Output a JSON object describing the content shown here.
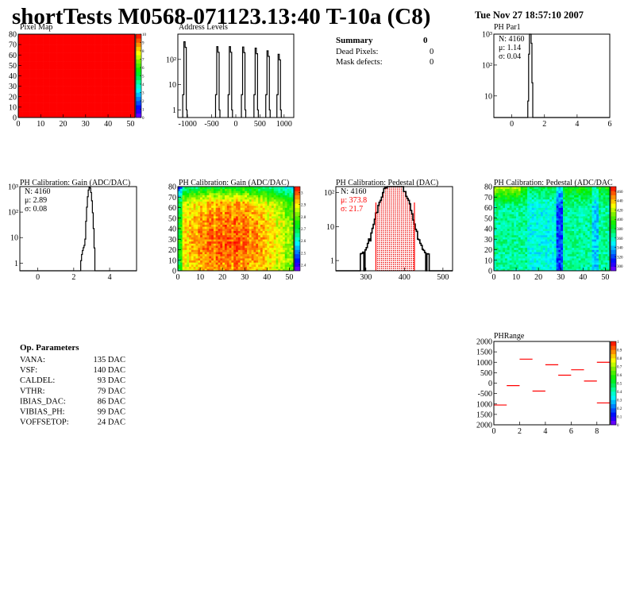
{
  "header": {
    "title": "shortTests M0568-071123.13:40 T-10a (C8)",
    "date": "Tue Nov 27 18:57:10 2007"
  },
  "summary": {
    "title": "Summary",
    "total": "0",
    "rows": [
      {
        "label": "Dead Pixels:",
        "value": "0"
      },
      {
        "label": "Mask defects:",
        "value": "0"
      }
    ]
  },
  "op_parameters": {
    "title": "Op. Parameters",
    "rows": [
      {
        "label": "VANA:",
        "value": "135 DAC"
      },
      {
        "label": "VSF:",
        "value": "140 DAC"
      },
      {
        "label": "CALDEL:",
        "value": "93 DAC"
      },
      {
        "label": "VTHR:",
        "value": "79 DAC"
      },
      {
        "label": "IBIAS_DAC:",
        "value": "86 DAC"
      },
      {
        "label": "VIBIAS_PH:",
        "value": "99 DAC"
      },
      {
        "label": "VOFFSETOP:",
        "value": "24 DAC"
      }
    ]
  },
  "chart_data": [
    {
      "id": "pixmap",
      "type": "heatmap",
      "title": "Pixel Map",
      "xlim": [
        0,
        52
      ],
      "ylim": [
        0,
        80
      ],
      "zlim": [
        0,
        10
      ],
      "xticks": [
        "0",
        "10",
        "20",
        "30",
        "40",
        "50"
      ],
      "yticks": [
        "0",
        "10",
        "20",
        "30",
        "40",
        "50",
        "60",
        "70",
        "80"
      ],
      "zticks": [
        "0",
        "1",
        "2",
        "3",
        "4",
        "5",
        "6",
        "7",
        "8",
        "9",
        "10"
      ],
      "uniform_value": 10
    },
    {
      "id": "addr",
      "type": "bar",
      "title": "Address Levels",
      "xlim": [
        -1200,
        1200
      ],
      "ylog": true,
      "ylim": [
        0.5,
        1000
      ],
      "xticks": [
        "-1000",
        "-500",
        "0",
        "500",
        "1000"
      ],
      "yticks": [
        "1",
        "10",
        "10²"
      ],
      "peaks": [
        {
          "x": -1050,
          "y": 500
        },
        {
          "x": -370,
          "y": 320
        },
        {
          "x": -110,
          "y": 320
        },
        {
          "x": 165,
          "y": 310
        },
        {
          "x": 425,
          "y": 280
        },
        {
          "x": 670,
          "y": 220
        },
        {
          "x": 900,
          "y": 160
        }
      ]
    },
    {
      "id": "par1",
      "type": "bar",
      "title": "PH Par1",
      "xlim": [
        -1.1,
        6
      ],
      "ylog": true,
      "ylim": [
        2,
        1000
      ],
      "xticks": [
        "0",
        "2",
        "4",
        "6"
      ],
      "yticks": [
        "10",
        "10²",
        "10³"
      ],
      "stats": {
        "n": "N: 4160",
        "mean": "μ: 1.14",
        "sigma": "σ: 0.04"
      },
      "mu": 1.14,
      "sigma": 0.04,
      "entries": 4160
    },
    {
      "id": "gainh",
      "type": "bar",
      "title": "PH Calibration: Gain (ADC/DAC)",
      "xlim": [
        -1,
        5.5
      ],
      "ylog": true,
      "ylim": [
        0.5,
        1000
      ],
      "xticks": [
        "0",
        "2",
        "4"
      ],
      "yticks": [
        "1",
        "10",
        "10²",
        "10³"
      ],
      "stats": {
        "n": "N: 4160",
        "mean": "μ: 2.89",
        "sigma": "σ: 0.08"
      },
      "mu": 2.89,
      "sigma": 0.08,
      "entries": 4160
    },
    {
      "id": "gainm",
      "type": "heatmap",
      "title": "PH Calibration: Gain (ADC/DAC)",
      "xlim": [
        0,
        52
      ],
      "ylim": [
        0,
        80
      ],
      "zlim": [
        2.35,
        3.05
      ],
      "xticks": [
        "0",
        "10",
        "20",
        "30",
        "40",
        "50"
      ],
      "yticks": [
        "0",
        "10",
        "20",
        "30",
        "40",
        "50",
        "60",
        "70",
        "80"
      ],
      "zticks": [
        "2.4",
        "2.5",
        "2.6",
        "2.7",
        "2.8",
        "2.9",
        "3"
      ]
    },
    {
      "id": "pedh",
      "type": "bar",
      "title": "PH Calibration: Pedestal (DAC)",
      "xlim": [
        222,
        525
      ],
      "ylog": true,
      "ylim": [
        0.5,
        150
      ],
      "xticks": [
        "300",
        "400",
        "500"
      ],
      "yticks": [
        "1",
        "10",
        "10²"
      ],
      "stats": {
        "n": "N: 4160",
        "mean": "μ: 373.8",
        "sigma": "σ: 21.7"
      },
      "mu": 373.8,
      "sigma": 21.7,
      "entries": 4160,
      "fit_range": [
        326,
        426
      ],
      "accent": "#ff0000"
    },
    {
      "id": "pedm",
      "type": "heatmap",
      "title": "PH Calibration: Pedestal (ADC/DAC",
      "xlim": [
        0,
        52
      ],
      "ylim": [
        0,
        80
      ],
      "zlim": [
        290,
        470
      ],
      "xticks": [
        "0",
        "10",
        "20",
        "30",
        "40",
        "50"
      ],
      "yticks": [
        "0",
        "10",
        "20",
        "30",
        "40",
        "50",
        "60",
        "70",
        "80"
      ],
      "zticks": [
        "300",
        "320",
        "340",
        "360",
        "380",
        "400",
        "420",
        "440",
        "460"
      ]
    },
    {
      "id": "phrange",
      "type": "scatter",
      "title": "PHRange",
      "xlim": [
        0,
        9
      ],
      "ylim": [
        -2000,
        2000
      ],
      "xticks": [
        "0",
        "2",
        "4",
        "6",
        "8"
      ],
      "yticks": [
        "2000",
        "1500",
        "1000",
        "500",
        "0",
        "-500",
        "1000",
        "1500",
        "2000"
      ],
      "zticks": [
        "0",
        "0.1",
        "0.2",
        "0.3",
        "0.4",
        "0.5",
        "0.6",
        "0.7",
        "0.8",
        "0.9",
        "1"
      ],
      "segments": [
        {
          "x": 0,
          "y": -1050
        },
        {
          "x": 1,
          "y": -120
        },
        {
          "x": 2,
          "y": 1150
        },
        {
          "x": 3,
          "y": -380
        },
        {
          "x": 4,
          "y": 880
        },
        {
          "x": 5,
          "y": 380
        },
        {
          "x": 6,
          "y": 640
        },
        {
          "x": 7,
          "y": 100
        },
        {
          "x": 8,
          "y": 1000
        },
        {
          "x": 8,
          "y": -950
        }
      ],
      "color": "#ff0000"
    }
  ]
}
